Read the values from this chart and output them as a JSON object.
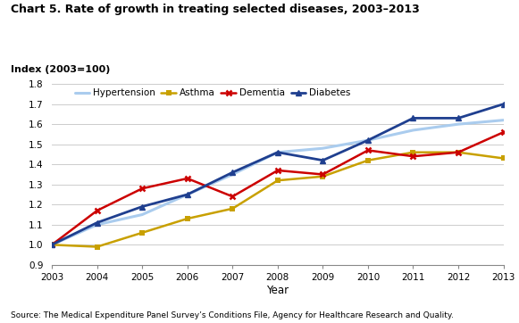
{
  "title": "Chart 5. Rate of growth in treating selected diseases, 2003–2013",
  "ylabel": "Index (2003=100)",
  "xlabel": "Year",
  "source": "Source: The Medical Expenditure Panel Survey’s Conditions File, Agency for Healthcare Research and Quality.",
  "years": [
    2003,
    2004,
    2005,
    2006,
    2007,
    2008,
    2009,
    2010,
    2011,
    2012,
    2013
  ],
  "asthma": [
    1.0,
    0.99,
    1.06,
    1.13,
    1.18,
    1.32,
    1.34,
    1.42,
    1.46,
    1.46,
    1.43
  ],
  "dementia": [
    1.0,
    1.17,
    1.28,
    1.33,
    1.24,
    1.37,
    1.35,
    1.47,
    1.44,
    1.46,
    1.56
  ],
  "diabetes": [
    1.0,
    1.11,
    1.19,
    1.25,
    1.36,
    1.46,
    1.42,
    1.52,
    1.63,
    1.63,
    1.7
  ],
  "hypertension": [
    1.0,
    1.1,
    1.15,
    1.25,
    1.35,
    1.46,
    1.48,
    1.52,
    1.57,
    1.6,
    1.62
  ],
  "colors": {
    "asthma": "#C8A000",
    "dementia": "#CC0000",
    "diabetes": "#1F3F8F",
    "hypertension": "#AACCEE"
  },
  "ylim": [
    0.9,
    1.8
  ],
  "yticks": [
    0.9,
    1.0,
    1.1,
    1.2,
    1.3,
    1.4,
    1.5,
    1.6,
    1.7,
    1.8
  ]
}
